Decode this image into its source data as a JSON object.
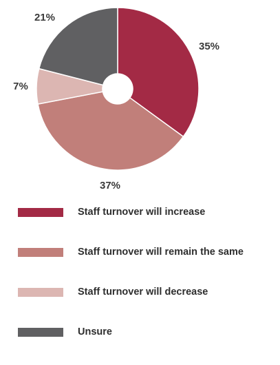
{
  "chart_data": {
    "type": "pie",
    "title": "",
    "donut": true,
    "slices": [
      {
        "label": "Staff turnover will increase",
        "value": 35,
        "display": "35%",
        "color": "#a32a45"
      },
      {
        "label": "Staff turnover will remain the same",
        "value": 37,
        "display": "37%",
        "color": "#c17f7a"
      },
      {
        "label": "Staff turnover will decrease",
        "value": 7,
        "display": "7%",
        "color": "#dcb6b2"
      },
      {
        "label": "Unsure",
        "value": 21,
        "display": "21%",
        "color": "#606062"
      }
    ],
    "legend_position": "bottom"
  }
}
